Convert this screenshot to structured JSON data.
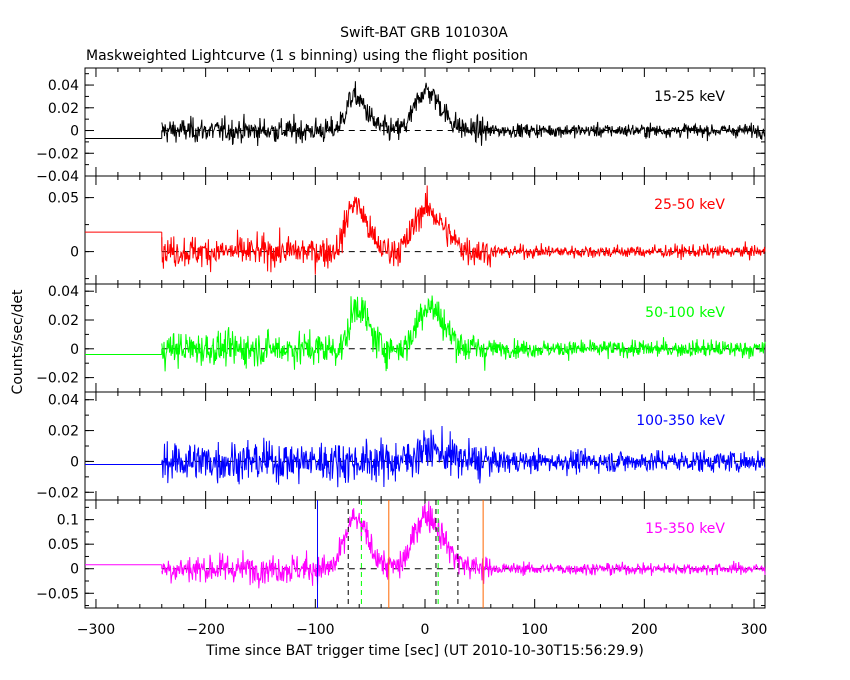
{
  "chart_data": {
    "type": "line",
    "title": "Swift-BAT GRB 101030A",
    "subtitle": "Maskweighted Lightcurve (1 s binning) using the flight position",
    "xlabel": "Time since BAT trigger time [sec] (UT 2010-10-30T15:56:29.9)",
    "ylabel": "Counts/sec/det",
    "xlim": [
      -310,
      310
    ],
    "x_ticks": [
      -300,
      -200,
      -100,
      0,
      100,
      200,
      300
    ],
    "grid": false,
    "panels": [
      {
        "name": "15-25 keV",
        "color": "#000000",
        "ylim": [
          -0.04,
          0.055
        ],
        "y_ticks": [
          -0.04,
          -0.02,
          0,
          0.02,
          0.04
        ],
        "y_tick_labels": [
          "−0.04",
          "−0.02",
          "0",
          "0.02",
          "0.04"
        ],
        "pre_level": -0.007,
        "start": -240,
        "noise": 0.009,
        "noise_late": 0.005,
        "peaks": [
          {
            "t": -65,
            "a": 0.03,
            "w": 7
          },
          {
            "t": 0,
            "a": 0.035,
            "w": 9
          }
        ]
      },
      {
        "name": "25-50 keV",
        "color": "#ff0000",
        "ylim": [
          -0.03,
          0.07
        ],
        "y_ticks": [
          0,
          0.05
        ],
        "y_tick_labels": [
          "0",
          "0.05"
        ],
        "pre_level": 0.018,
        "start": -240,
        "noise": 0.012,
        "noise_late": 0.005,
        "peaks": [
          {
            "t": -65,
            "a": 0.045,
            "w": 7
          },
          {
            "t": 0,
            "a": 0.04,
            "w": 10
          }
        ]
      },
      {
        "name": "50-100 keV",
        "color": "#00ff00",
        "ylim": [
          -0.03,
          0.045
        ],
        "y_ticks": [
          -0.02,
          0,
          0.02,
          0.04
        ],
        "y_tick_labels": [
          "−0.02",
          "0",
          "0.02",
          "0.04"
        ],
        "pre_level": -0.004,
        "start": -240,
        "noise": 0.01,
        "noise_late": 0.005,
        "peaks": [
          {
            "t": -62,
            "a": 0.03,
            "w": 6
          },
          {
            "t": 2,
            "a": 0.03,
            "w": 9
          }
        ]
      },
      {
        "name": "100-350 keV",
        "color": "#0000ff",
        "ylim": [
          -0.025,
          0.045
        ],
        "y_ticks": [
          -0.02,
          0,
          0.02,
          0.04
        ],
        "y_tick_labels": [
          "−0.02",
          "0",
          "0.02",
          "0.04"
        ],
        "pre_level": -0.002,
        "start": -240,
        "noise": 0.011,
        "noise_late": 0.006,
        "peaks": [
          {
            "t": 2,
            "a": 0.008,
            "w": 10
          }
        ]
      },
      {
        "name": "15-350 keV",
        "color": "#ff00ff",
        "ylim": [
          -0.08,
          0.14
        ],
        "y_ticks": [
          -0.05,
          0,
          0.05,
          0.1
        ],
        "y_tick_labels": [
          "−0.05",
          "0",
          "0.05",
          "0.1"
        ],
        "pre_level": 0.008,
        "start": -240,
        "noise": 0.025,
        "noise_late": 0.01,
        "peaks": [
          {
            "t": -65,
            "a": 0.1,
            "w": 8
          },
          {
            "t": 0,
            "a": 0.11,
            "w": 10
          }
        ]
      }
    ],
    "annotation_lines": [
      {
        "x": -98,
        "color": "#0000ff",
        "style": "solid"
      },
      {
        "x": -70,
        "color": "#000000",
        "style": "dashed"
      },
      {
        "x": -58,
        "color": "#00ff00",
        "style": "dashed"
      },
      {
        "x": -33,
        "color": "#ff6600",
        "style": "solid"
      },
      {
        "x": 10,
        "color": "#000000",
        "style": "dashed"
      },
      {
        "x": 12,
        "color": "#00ff00",
        "style": "dashed"
      },
      {
        "x": 30,
        "color": "#000000",
        "style": "dashed"
      },
      {
        "x": 53,
        "color": "#ff6600",
        "style": "solid"
      }
    ]
  }
}
